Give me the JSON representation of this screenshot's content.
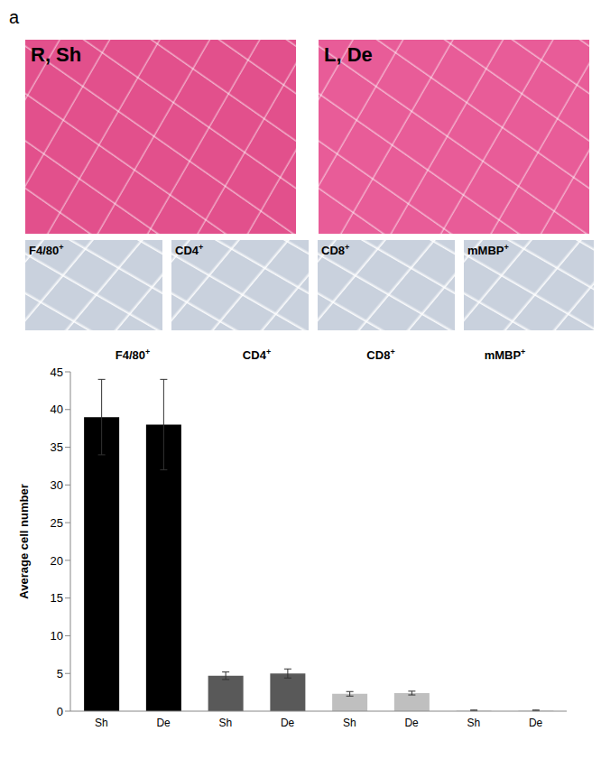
{
  "figure": {
    "panel_label": "a",
    "he_panels": [
      "R, Sh",
      "L, De"
    ],
    "stain_panels": [
      "F4/80+",
      "CD4+",
      "CD8+",
      "mMBP+"
    ]
  },
  "chart_data": {
    "type": "bar",
    "groups": [
      "F4/80+",
      "CD4+",
      "CD8+",
      "mMBP+"
    ],
    "categories": [
      "Sh",
      "De",
      "Sh",
      "De",
      "Sh",
      "De",
      "Sh",
      "De"
    ],
    "values": [
      39,
      38,
      4.7,
      5,
      2.3,
      2.4,
      0.1,
      0.1
    ],
    "errors": [
      5,
      6,
      0.5,
      0.6,
      0.3,
      0.25,
      0.05,
      0.05
    ],
    "colors": [
      "#000000",
      "#000000",
      "#595959",
      "#595959",
      "#bfbfbf",
      "#bfbfbf",
      "#d9d9d9",
      "#d9d9d9"
    ],
    "ylabel": "Average cell number",
    "ylim": [
      0,
      45
    ],
    "yticks": [
      0,
      5,
      10,
      15,
      20,
      25,
      30,
      35,
      40,
      45
    ],
    "grid": false
  }
}
